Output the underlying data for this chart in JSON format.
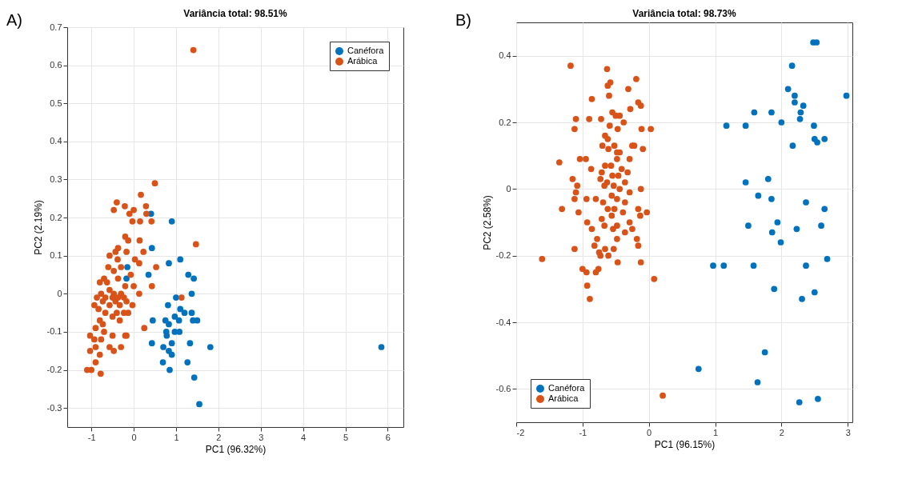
{
  "chart_data": [
    {
      "type": "scatter",
      "title": "Variância total: 98.51%",
      "xlabel": "PC1 (96.32%)",
      "ylabel": "PC2 (2.19%)",
      "annotations": [
        "A)"
      ],
      "xlim": [
        -1.57,
        6.37
      ],
      "ylim": [
        -0.35,
        0.7
      ],
      "xticks": [
        -1,
        0,
        1,
        2,
        3,
        4,
        5,
        6
      ],
      "yticks": [
        -0.3,
        -0.2,
        -0.1,
        0,
        0.1,
        0.2,
        0.3,
        0.4,
        0.5,
        0.6,
        0.7
      ],
      "grid": true,
      "legend": "top right",
      "marker": "circle",
      "series": [
        {
          "name": "Canéfora",
          "color": "#0072bd",
          "x": [
            0.41,
            0.9,
            0.43,
            0.83,
            1.1,
            0.35,
            -0.17,
            -0.15,
            1.29,
            1.42,
            1.37,
            1.0,
            0.81,
            0.45,
            1.1,
            1.2,
            1.37,
            0.97,
            1.07,
            0.75,
            0.83,
            1.4,
            1.5,
            0.77,
            0.78,
            0.97,
            1.08,
            0.43,
            0.7,
            0.9,
            1.33,
            0.83,
            0.9,
            1.81,
            0.69,
            1.27,
            0.85,
            1.43,
            1.55,
            5.85
          ],
          "values": [
            0.21,
            0.19,
            0.12,
            0.08,
            0.09,
            0.05,
            0.04,
            0.07,
            0.05,
            0.04,
            0,
            -0.01,
            -0.03,
            -0.07,
            -0.04,
            -0.05,
            -0.05,
            -0.06,
            -0.07,
            -0.07,
            -0.08,
            -0.07,
            -0.07,
            -0.1,
            -0.11,
            -0.1,
            -0.1,
            -0.13,
            -0.14,
            -0.13,
            -0.13,
            -0.15,
            -0.16,
            -0.14,
            -0.18,
            -0.18,
            -0.2,
            -0.22,
            -0.29,
            -0.14
          ]
        },
        {
          "name": "Arábica",
          "color": "#d95319",
          "x": [
            1.41,
            0.5,
            0.17,
            -0.4,
            -0.47,
            -0.21,
            0,
            0.29,
            0.3,
            -0.1,
            -0.03,
            0.15,
            0.42,
            1.47,
            -0.2,
            -0.13,
            0.14,
            -0.37,
            -0.43,
            -0.17,
            0.23,
            -0.57,
            -0.38,
            0.03,
            0.13,
            -0.6,
            -0.3,
            0.53,
            -0.47,
            -0.07,
            -0.7,
            -0.37,
            -0.8,
            -0.63,
            -0.2,
            0,
            0.43,
            -0.57,
            -0.77,
            -0.47,
            -0.3,
            0.13,
            -0.67,
            -0.5,
            -0.37,
            -0.23,
            -0.87,
            1.13,
            -0.73,
            -0.43,
            -0.17,
            -0.93,
            -0.57,
            -0.33,
            -0.03,
            -0.83,
            -0.67,
            -0.23,
            -0.4,
            -0.13,
            -0.5,
            -0.33,
            -0.8,
            -0.73,
            -0.9,
            0.25,
            -0.7,
            -1.03,
            -0.2,
            -0.17,
            -0.5,
            -0.93,
            -0.77,
            -0.3,
            -0.57,
            -0.9,
            -1.03,
            -0.47,
            -0.8,
            -0.9,
            -1.1,
            -1.0,
            -0.78
          ],
          "values": [
            0.64,
            0.29,
            0.26,
            0.24,
            0.22,
            0.23,
            0.22,
            0.23,
            0.21,
            0.21,
            0.19,
            0.19,
            0.19,
            0.13,
            0.15,
            0.14,
            0.14,
            0.12,
            0.11,
            0.11,
            0.11,
            0.1,
            0.09,
            0.09,
            0.08,
            0.07,
            0.07,
            0.07,
            0.06,
            0.05,
            0.04,
            0.04,
            0.03,
            0.03,
            0.02,
            0.02,
            0.02,
            0.01,
            0,
            0,
            0,
            0,
            -0.01,
            -0.01,
            -0.01,
            -0.01,
            -0.01,
            -0.01,
            -0.02,
            -0.02,
            -0.02,
            -0.03,
            -0.03,
            -0.03,
            -0.03,
            -0.04,
            -0.05,
            -0.05,
            -0.05,
            -0.05,
            -0.06,
            -0.07,
            -0.07,
            -0.08,
            -0.09,
            -0.09,
            -0.1,
            -0.11,
            -0.11,
            -0.11,
            -0.11,
            -0.12,
            -0.12,
            -0.14,
            -0.14,
            -0.14,
            -0.15,
            -0.15,
            -0.16,
            -0.18,
            -0.2,
            -0.2,
            -0.21
          ]
        }
      ]
    },
    {
      "type": "scatter",
      "title": "Variância total: 98.73%",
      "xlabel": "PC1 (96.15%)",
      "ylabel": "PC2 (2.58%)",
      "annotations": [
        "B)"
      ],
      "xlim": [
        -2,
        3.07
      ],
      "ylim": [
        -0.7,
        0.5
      ],
      "xticks": [
        -2,
        -1,
        0,
        1,
        2,
        3
      ],
      "yticks": [
        -0.6,
        -0.4,
        -0.2,
        0,
        0.2,
        0.4
      ],
      "grid": true,
      "legend": "bottom left",
      "marker": "circle",
      "series": [
        {
          "name": "Canéfora",
          "color": "#0072bd",
          "x": [
            2.48,
            2.53,
            2.16,
            2.1,
            2.98,
            2.2,
            2.2,
            2.33,
            2.29,
            2.28,
            1.59,
            1.85,
            2.0,
            1.17,
            1.46,
            2.49,
            2.5,
            2.65,
            2.54,
            2.17,
            1.46,
            1.8,
            1.65,
            1.85,
            2.37,
            2.65,
            1.5,
            1.94,
            1.86,
            2.23,
            2.6,
            1.99,
            2.69,
            0.97,
            1.13,
            1.58,
            2.37,
            1.89,
            2.5,
            2.31,
            1.75,
            0.75,
            1.64,
            2.27,
            2.55
          ],
          "values": [
            0.44,
            0.44,
            0.37,
            0.3,
            0.28,
            0.28,
            0.26,
            0.25,
            0.23,
            0.21,
            0.23,
            0.23,
            0.2,
            0.19,
            0.19,
            0.19,
            0.15,
            0.15,
            0.14,
            0.13,
            0.02,
            0.03,
            -0.02,
            -0.03,
            -0.04,
            -0.06,
            -0.11,
            -0.1,
            -0.13,
            -0.12,
            -0.11,
            -0.16,
            -0.21,
            -0.23,
            -0.23,
            -0.23,
            -0.23,
            -0.3,
            -0.31,
            -0.33,
            -0.49,
            -0.54,
            -0.58,
            -0.64,
            -0.63
          ]
        },
        {
          "name": "Arábica",
          "color": "#d95319",
          "x": [
            -1.18,
            -0.63,
            -0.58,
            -0.62,
            -0.19,
            -0.31,
            -0.6,
            -0.86,
            -0.16,
            -0.12,
            -0.28,
            -0.55,
            -0.5,
            -0.44,
            -1.1,
            -0.9,
            -0.72,
            -0.38,
            -0.59,
            -1.12,
            -0.11,
            0.03,
            -0.47,
            -0.66,
            -0.62,
            -0.7,
            -0.52,
            -0.25,
            -0.22,
            -0.09,
            -0.61,
            -0.48,
            -0.44,
            -1.04,
            -0.95,
            -0.29,
            -0.48,
            -1.35,
            -0.66,
            -0.57,
            -0.87,
            -0.41,
            -0.32,
            -0.71,
            -0.55,
            -0.46,
            -0.73,
            -1.15,
            -0.63,
            -0.36,
            -0.53,
            -1.08,
            -0.12,
            -0.67,
            -0.44,
            -1.1,
            -0.29,
            -0.94,
            -0.8,
            -0.56,
            -0.48,
            -1.12,
            -0.69,
            -0.36,
            -0.62,
            -1.31,
            -1.06,
            -0.52,
            -0.16,
            -0.03,
            -0.39,
            -0.13,
            -0.56,
            -0.71,
            -0.93,
            -0.29,
            -0.48,
            -0.67,
            -0.86,
            -0.36,
            -0.54,
            -0.25,
            -0.78,
            -0.48,
            -0.18,
            -0.16,
            -0.82,
            -0.66,
            -0.53,
            -1.12,
            -0.75,
            -0.73,
            -0.61,
            -1.61,
            -0.47,
            -0.12,
            -1.0,
            -0.94,
            -0.8,
            -0.76,
            0.08,
            -0.93,
            -0.89,
            0.21
          ],
          "values": [
            0.37,
            0.36,
            0.32,
            0.31,
            0.33,
            0.3,
            0.28,
            0.27,
            0.26,
            0.25,
            0.24,
            0.23,
            0.22,
            0.22,
            0.21,
            0.21,
            0.21,
            0.2,
            0.19,
            0.18,
            0.18,
            0.18,
            0.18,
            0.16,
            0.15,
            0.13,
            0.13,
            0.13,
            0.13,
            0.12,
            0.12,
            0.11,
            0.11,
            0.09,
            0.09,
            0.09,
            0.09,
            0.08,
            0.07,
            0.07,
            0.06,
            0.06,
            0.05,
            0.05,
            0.04,
            0.04,
            0.03,
            0.03,
            0.02,
            0.02,
            0.01,
            0.01,
            0,
            0.01,
            0,
            -0.01,
            -0.01,
            -0.03,
            -0.03,
            -0.02,
            -0.03,
            -0.03,
            -0.04,
            -0.04,
            -0.06,
            -0.06,
            -0.07,
            -0.06,
            -0.06,
            -0.07,
            -0.07,
            -0.08,
            -0.08,
            -0.09,
            -0.1,
            -0.1,
            -0.11,
            -0.11,
            -0.12,
            -0.13,
            -0.12,
            -0.12,
            -0.15,
            -0.15,
            -0.15,
            -0.17,
            -0.17,
            -0.18,
            -0.18,
            -0.18,
            -0.19,
            -0.2,
            -0.2,
            -0.21,
            -0.22,
            -0.22,
            -0.24,
            -0.25,
            -0.25,
            -0.24,
            -0.27,
            -0.29,
            -0.33,
            -0.62
          ]
        }
      ]
    }
  ]
}
